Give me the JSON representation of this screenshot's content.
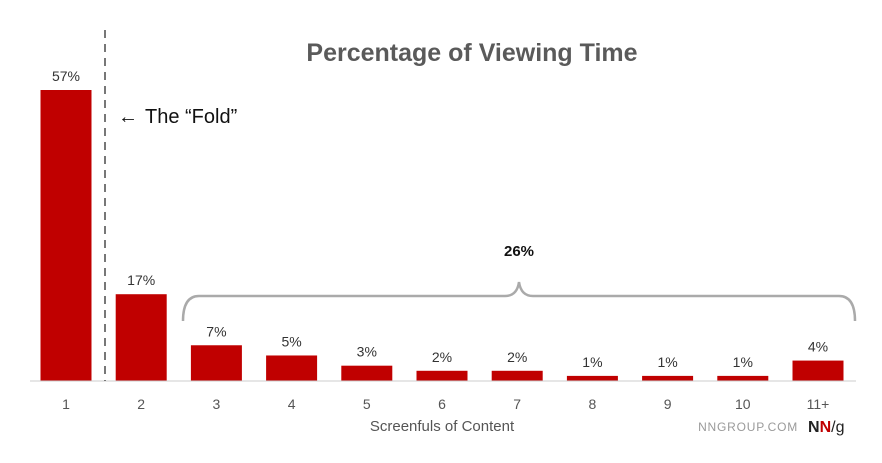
{
  "chart_data": {
    "type": "bar",
    "title": "Percentage of Viewing Time",
    "xlabel": "Screenfuls of Content",
    "ylabel": "",
    "categories": [
      "1",
      "2",
      "3",
      "4",
      "5",
      "6",
      "7",
      "8",
      "9",
      "10",
      "11+"
    ],
    "values": [
      57,
      17,
      7,
      5,
      3,
      2,
      2,
      1,
      1,
      1,
      4
    ],
    "value_labels": [
      "57%",
      "17%",
      "7%",
      "5%",
      "3%",
      "2%",
      "2%",
      "1%",
      "1%",
      "1%",
      "4%"
    ],
    "ylim": [
      0,
      57
    ],
    "grid": false,
    "bar_color": "#c00000",
    "annotations": {
      "fold_label": "The “Fold”",
      "fold_arrow_glyph": "←",
      "bracket_label": "26%"
    }
  },
  "footer": {
    "site": "NNGROUP.COM",
    "logo_n1": "N",
    "logo_n2": "N",
    "logo_slash_g": "/g",
    "logo_red": "#c00000",
    "logo_dark": "#222222"
  }
}
